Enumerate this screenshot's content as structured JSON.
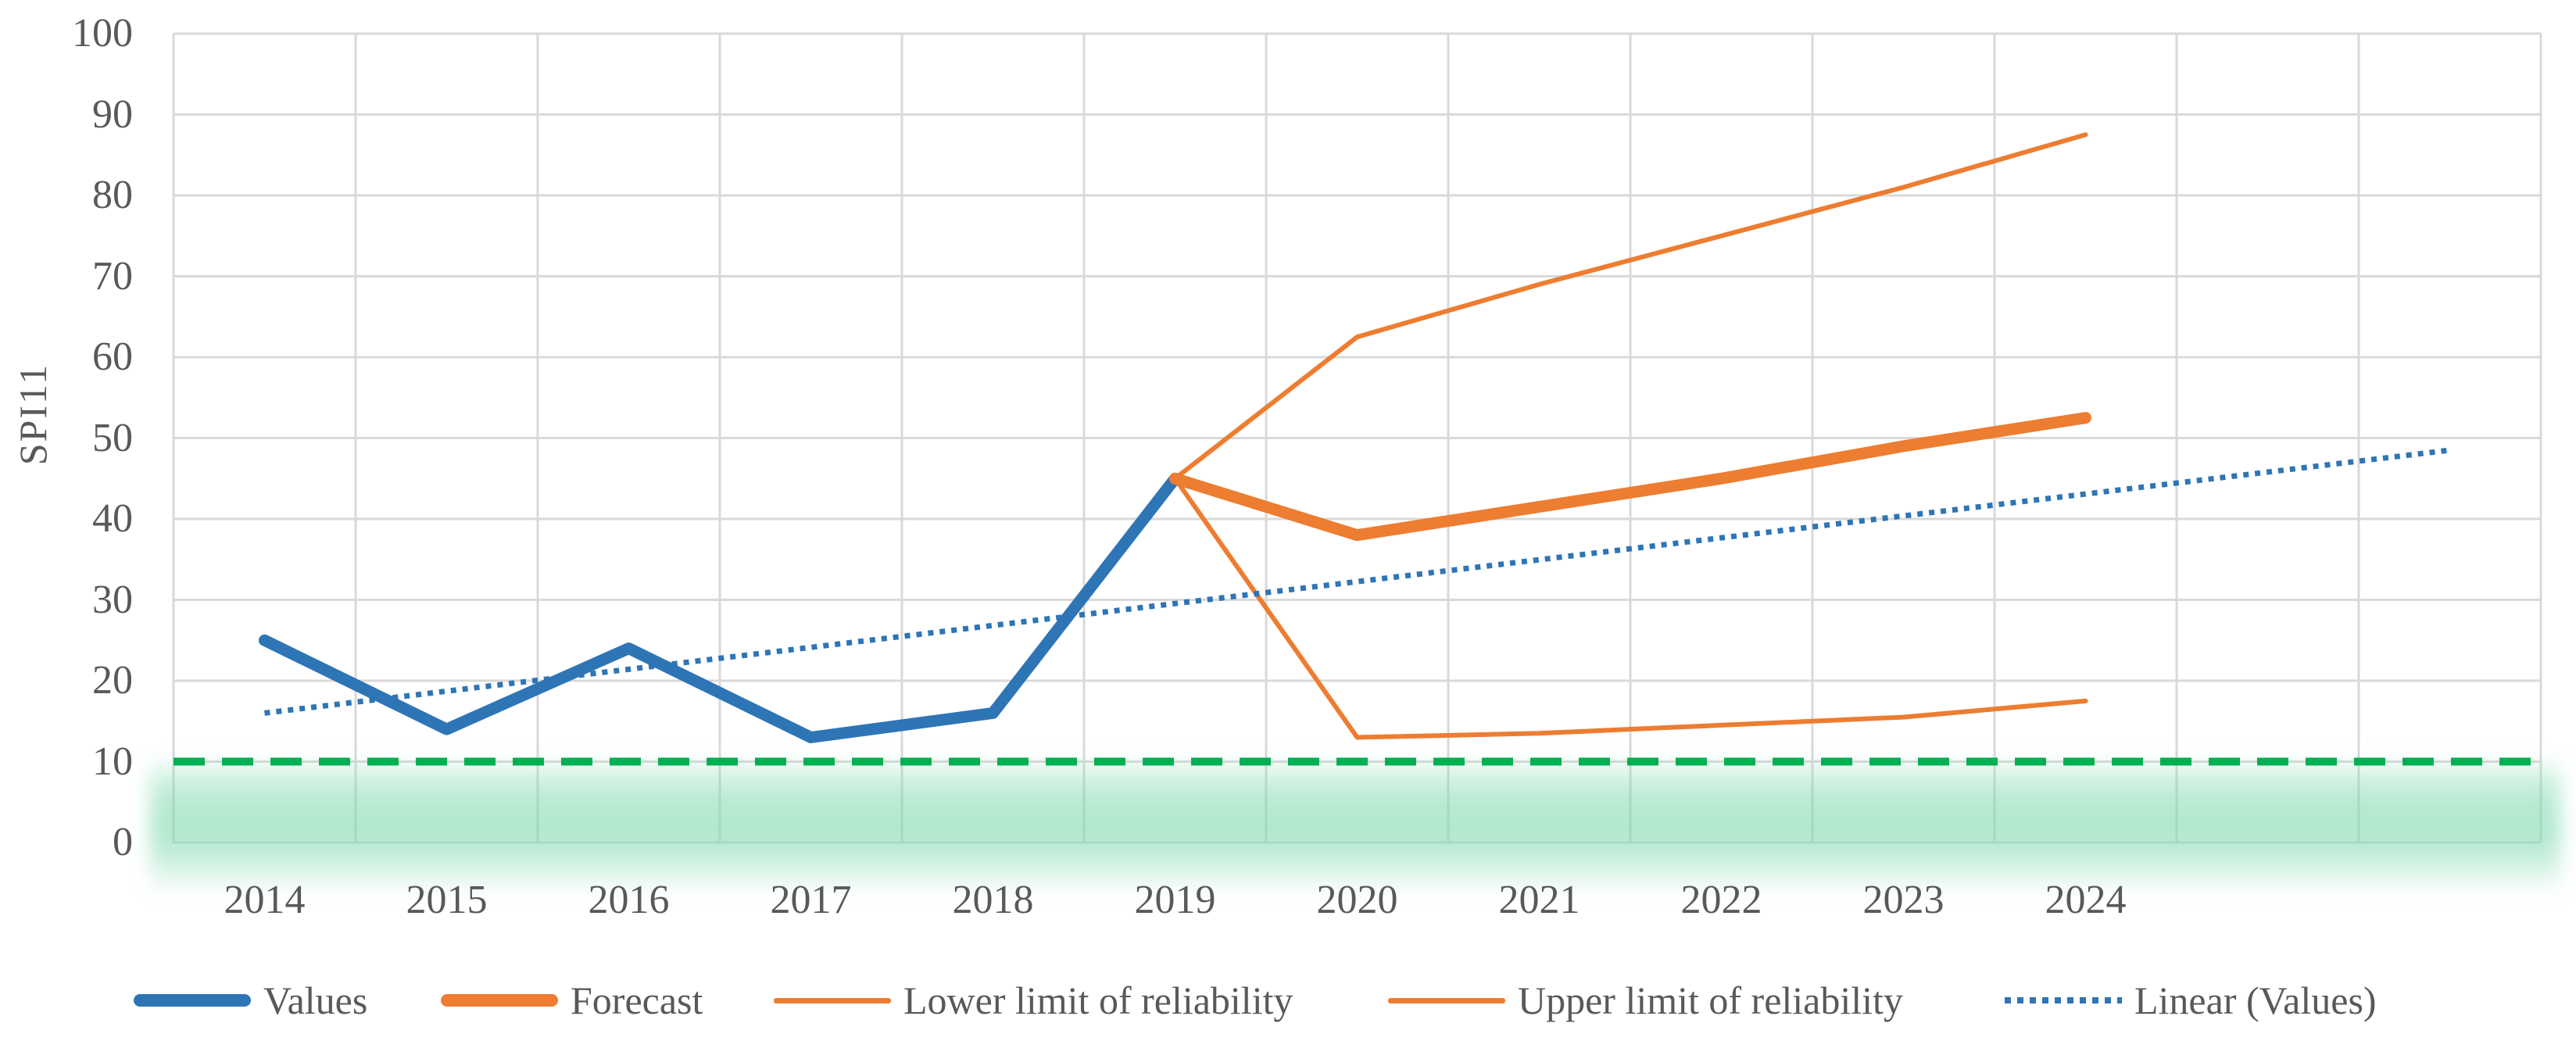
{
  "chart_data": {
    "type": "line",
    "title": "",
    "xlabel": "",
    "ylabel": "SPI11",
    "ylim": [
      0,
      100
    ],
    "y_tick_step": 10,
    "y_ticks": [
      "0",
      "10",
      "20",
      "30",
      "40",
      "50",
      "60",
      "70",
      "80",
      "90",
      "100"
    ],
    "x_tick_labels": [
      "2014",
      "2015",
      "2016",
      "2017",
      "2018",
      "2019",
      "2020",
      "2021",
      "2022",
      "2023",
      "2024"
    ],
    "first_year": 2014,
    "extra_unlabeled_bands_right": 2,
    "grid": true,
    "legend_position": "bottom",
    "series": [
      {
        "name": "Values",
        "style": "thick",
        "color": "#2E75B6",
        "stroke_width": 15,
        "dash": null,
        "x": [
          2014,
          2015,
          2016,
          2017,
          2018,
          2019
        ],
        "values": [
          25,
          14,
          24,
          13,
          16,
          45
        ]
      },
      {
        "name": "Forecast",
        "style": "thick",
        "color": "#ED7D31",
        "stroke_width": 15,
        "dash": null,
        "x": [
          2019,
          2020,
          2021,
          2022,
          2023,
          2024
        ],
        "values": [
          45,
          38,
          41.5,
          45,
          49,
          52.5
        ]
      },
      {
        "name": "Lower limit of reliability",
        "style": "thin",
        "color": "#ED7D31",
        "stroke_width": 6,
        "dash": null,
        "x": [
          2019,
          2020,
          2021,
          2022,
          2023,
          2024
        ],
        "values": [
          45,
          13,
          13.5,
          14.5,
          15.5,
          17.5
        ]
      },
      {
        "name": "Upper limit of reliability",
        "style": "thin",
        "color": "#ED7D31",
        "stroke_width": 6,
        "dash": null,
        "x": [
          2019,
          2020,
          2021,
          2022,
          2023,
          2024
        ],
        "values": [
          45,
          62.5,
          69,
          75,
          81,
          87.5
        ]
      },
      {
        "name": "Linear (Values)",
        "style": "dotted",
        "color": "#2E75B6",
        "stroke_width": 7,
        "dash": "7 8",
        "x": [
          2014,
          2026
        ],
        "values": [
          16,
          48.5
        ]
      }
    ],
    "threshold": {
      "name": "drought-threshold",
      "value": 10,
      "color": "#00B050",
      "stroke_width": 10,
      "dash": "40 22",
      "glow_color": "#7ED9AE"
    }
  },
  "axis_style": {
    "grid_color": "#D9D9D9",
    "text_color": "#595959"
  },
  "legend": {
    "items": [
      {
        "label": "Values",
        "swatch": "thick",
        "color": "#2E75B6"
      },
      {
        "label": "Forecast",
        "swatch": "thick",
        "color": "#ED7D31"
      },
      {
        "label": "Lower limit of reliability",
        "swatch": "thin",
        "color": "#ED7D31"
      },
      {
        "label": "Upper limit of reliability",
        "swatch": "thin",
        "color": "#ED7D31"
      },
      {
        "label": "Linear (Values)",
        "swatch": "dotted",
        "color": "#2E75B6"
      }
    ]
  }
}
